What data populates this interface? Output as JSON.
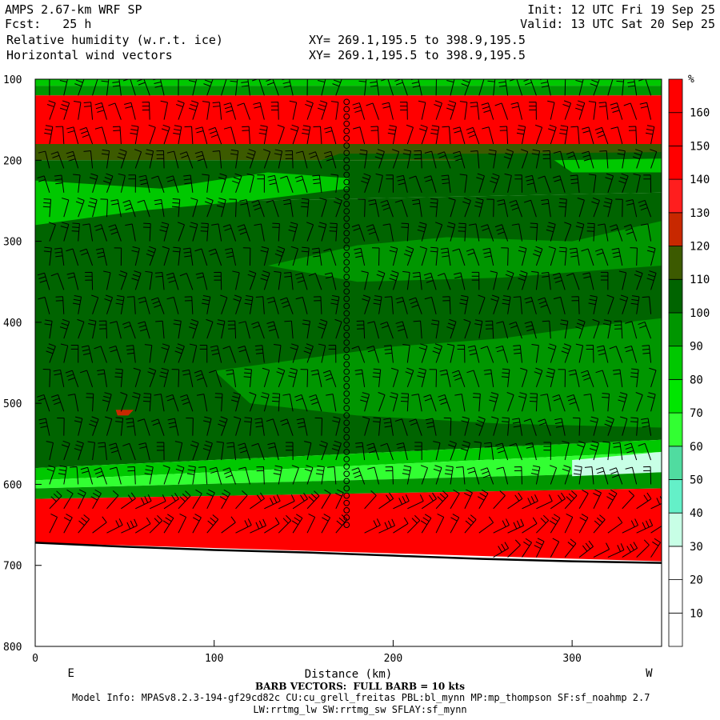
{
  "header": {
    "model": "AMPS 2.67-km WRF SP",
    "forecast": "Fcst:   25 h",
    "field1": "Relative humidity (w.r.t. ice)",
    "field2": "Horizontal wind vectors",
    "xy1": "XY= 269.1,195.5 to 398.9,195.5",
    "xy2": "XY= 269.1,195.5 to 398.9,195.5",
    "init": "Init: 12 UTC Fri 19 Sep 25",
    "valid": "Valid: 13 UTC Sat 20 Sep 25"
  },
  "footer": {
    "barb_note": "BARB VECTORS:  FULL BARB = 10 kts",
    "model_info": "Model Info: MPASv8.2.3-194-gf29cd82c CU:cu_grell_freitas PBL:bl_mynn MP:mp_thompson SF:sf_noahmp 2.7",
    "model_info2": "LW:rrtmg_lw SW:rrtmg_sw SFLAY:sf_mynn"
  },
  "chart_data": {
    "type": "heatmap",
    "title": "Relative humidity (w.r.t. ice)",
    "subtitle": "Horizontal wind vectors",
    "xlabel": "Distance (km)",
    "ylabel": "",
    "xlim": [
      0,
      350
    ],
    "ylim": [
      100,
      800
    ],
    "y_inverted": true,
    "x_ticks": [
      0,
      100,
      200,
      300
    ],
    "y_ticks": [
      100,
      200,
      300,
      400,
      500,
      600,
      700,
      800
    ],
    "x_end_labels": {
      "left": "E",
      "right": "W"
    },
    "colorbar": {
      "unit": "%",
      "levels": [
        10,
        20,
        30,
        40,
        50,
        60,
        70,
        80,
        90,
        100,
        110,
        120,
        130,
        140,
        150,
        160
      ],
      "colors": [
        "#ffffff",
        "#ffffff",
        "#ffffff",
        "#c8ffe6",
        "#64f0c8",
        "#50dca0",
        "#32ff32",
        "#00e600",
        "#00c800",
        "#009600",
        "#006400",
        "#3c5a00",
        "#c82800",
        "#ff1e1e",
        "#ff0000",
        "#ff0000",
        "#ff0000"
      ]
    },
    "rh_layers": [
      {
        "top_left": 100,
        "top_right": 100,
        "bottom_left": 108,
        "bottom_right": 108,
        "rh": 80
      },
      {
        "top_left": 108,
        "top_right": 108,
        "bottom_left": 120,
        "bottom_right": 120,
        "rh": 95
      },
      {
        "top_left": 120,
        "top_right": 120,
        "bottom_left": 180,
        "bottom_right": 180,
        "rh": 150
      },
      {
        "top_left": 180,
        "top_right": 180,
        "bottom_left": 200,
        "bottom_right": 200,
        "rh": 110
      },
      {
        "top_left": 200,
        "top_right": 200,
        "bottom_left": 255,
        "bottom_right": 240,
        "rh": 100
      },
      {
        "top_left": 255,
        "top_right": 240,
        "bottom_left": 580,
        "bottom_right": 545,
        "rh": 105
      },
      {
        "top_left": 580,
        "top_right": 545,
        "bottom_left": 595,
        "bottom_right": 560,
        "rh": 85
      },
      {
        "top_left": 595,
        "top_right": 560,
        "bottom_left": 605,
        "bottom_right": 585,
        "rh": 60
      },
      {
        "top_left": 605,
        "top_right": 585,
        "bottom_left": 618,
        "bottom_right": 605,
        "rh": 95
      },
      {
        "top_left": 618,
        "top_right": 605,
        "bottom_left": 672,
        "bottom_right": 695,
        "rh": 150
      }
    ],
    "rh_patches": [
      {
        "points": [
          [
            0,
            225
          ],
          [
            70,
            235
          ],
          [
            130,
            215
          ],
          [
            175,
            222
          ],
          [
            175,
            235
          ],
          [
            120,
            250
          ],
          [
            60,
            262
          ],
          [
            0,
            280
          ]
        ],
        "rh": 80
      },
      {
        "points": [
          [
            160,
            200
          ],
          [
            230,
            198
          ],
          [
            260,
            205
          ],
          [
            350,
            200
          ],
          [
            350,
            190
          ],
          [
            250,
            192
          ],
          [
            170,
            192
          ]
        ],
        "rh": 100
      },
      {
        "points": [
          [
            290,
            200
          ],
          [
            350,
            198
          ],
          [
            350,
            215
          ],
          [
            300,
            215
          ]
        ],
        "rh": 80
      },
      {
        "points": [
          [
            130,
            330
          ],
          [
            180,
            305
          ],
          [
            230,
            295
          ],
          [
            300,
            300
          ],
          [
            350,
            275
          ],
          [
            350,
            330
          ],
          [
            260,
            345
          ],
          [
            180,
            350
          ]
        ],
        "rh": 90
      },
      {
        "points": [
          [
            100,
            460
          ],
          [
            150,
            445
          ],
          [
            200,
            430
          ],
          [
            260,
            420
          ],
          [
            310,
            405
          ],
          [
            350,
            395
          ],
          [
            350,
            530
          ],
          [
            260,
            525
          ],
          [
            180,
            515
          ],
          [
            120,
            500
          ]
        ],
        "rh": 90
      },
      {
        "points": [
          [
            300,
            570
          ],
          [
            350,
            560
          ],
          [
            350,
            585
          ],
          [
            300,
            590
          ]
        ],
        "rh": 30
      },
      {
        "points": [
          [
            45,
            508
          ],
          [
            55,
            508
          ],
          [
            52,
            515
          ],
          [
            46,
            515
          ]
        ],
        "rh": 120
      }
    ],
    "terrain": [
      [
        0,
        672
      ],
      [
        50,
        677
      ],
      [
        100,
        681
      ],
      [
        150,
        684
      ],
      [
        200,
        688
      ],
      [
        250,
        692
      ],
      [
        300,
        695
      ],
      [
        350,
        697
      ]
    ],
    "barb_columns_km": [
      8,
      16,
      24,
      32,
      40,
      48,
      56,
      64,
      72,
      80,
      88,
      96,
      104,
      112,
      120,
      128,
      136,
      144,
      152,
      160,
      168,
      176,
      184,
      192,
      200,
      208,
      216,
      224,
      232,
      240,
      248,
      256,
      264,
      272,
      280,
      288,
      296,
      304,
      312,
      320,
      328,
      336,
      344
    ],
    "barb_levels_hpa": [
      120,
      150,
      180,
      210,
      240,
      270,
      300,
      330,
      360,
      390,
      420,
      450,
      480,
      510,
      540,
      570,
      600,
      630,
      660,
      690
    ],
    "calm_column_km": 174,
    "calm_levels_hpa": [
      128,
      137,
      146,
      155,
      164,
      173,
      182,
      191,
      200,
      209,
      218,
      227,
      236,
      245,
      254,
      263,
      272,
      281,
      290,
      299,
      308,
      317,
      326,
      335,
      344,
      353,
      362,
      371,
      380,
      389,
      398,
      407,
      416,
      425,
      434,
      443,
      452,
      461,
      470,
      479,
      488,
      497,
      506,
      515,
      524,
      533,
      542,
      551,
      560,
      569,
      578,
      587,
      596,
      605,
      614,
      623,
      632,
      641,
      650
    ]
  }
}
